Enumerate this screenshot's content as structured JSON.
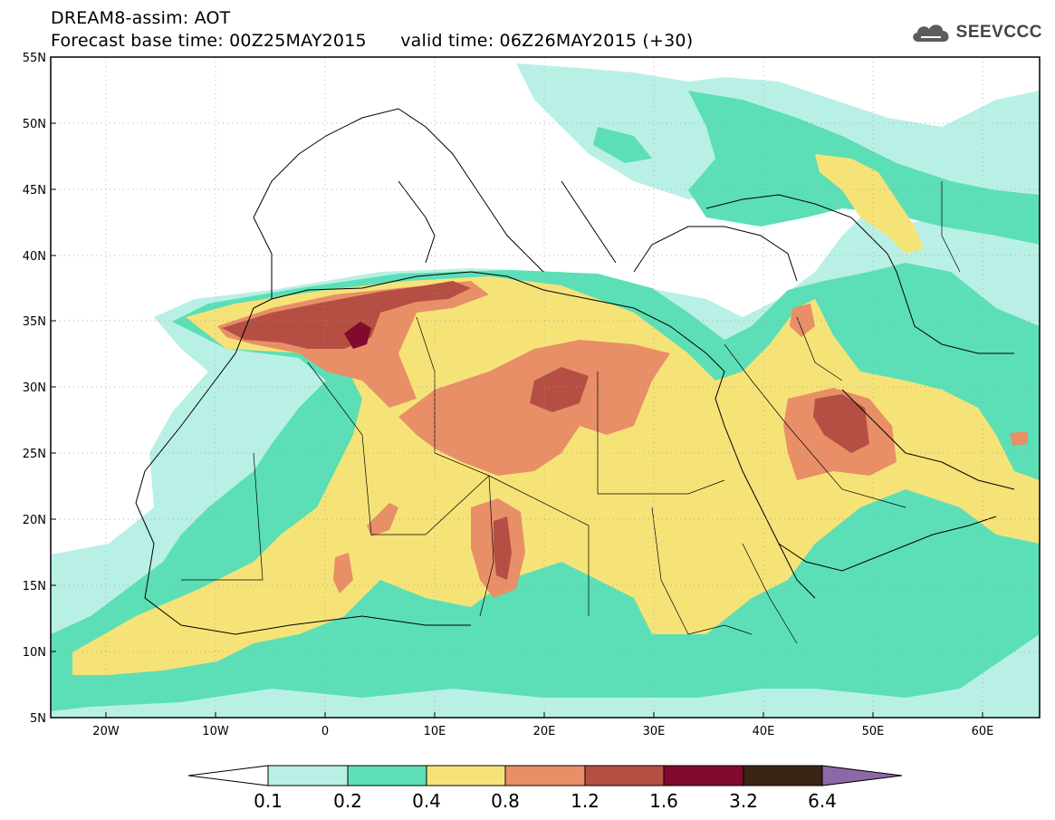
{
  "header": {
    "title": "DREAM8-assim: AOT",
    "base_time": "Forecast base time: 00Z25MAY2015",
    "valid_time": "valid time: 06Z26MAY2015 (+30)"
  },
  "logo": {
    "text": "SEEVCCC",
    "icon": "cloud-icon"
  },
  "map": {
    "lon_ticks": [
      "20W",
      "10W",
      "0",
      "10E",
      "20E",
      "30E",
      "40E",
      "50E",
      "60E"
    ],
    "lat_ticks": [
      "55N",
      "50N",
      "45N",
      "40N",
      "35N",
      "30N",
      "25N",
      "20N",
      "15N",
      "10N",
      "5N"
    ],
    "lon_range": [
      -25,
      65
    ],
    "lat_range": [
      5,
      55
    ],
    "grid": "dotted"
  },
  "colorbar": {
    "levels": [
      "0.1",
      "0.2",
      "0.4",
      "0.8",
      "1.2",
      "1.6",
      "3.2",
      "6.4"
    ],
    "colors": [
      "#b9f0e6",
      "#5cdfb6",
      "#f6e378",
      "#e88f67",
      "#b64f43",
      "#820a2d",
      "#3c2415",
      "#8d68a6"
    ]
  }
}
